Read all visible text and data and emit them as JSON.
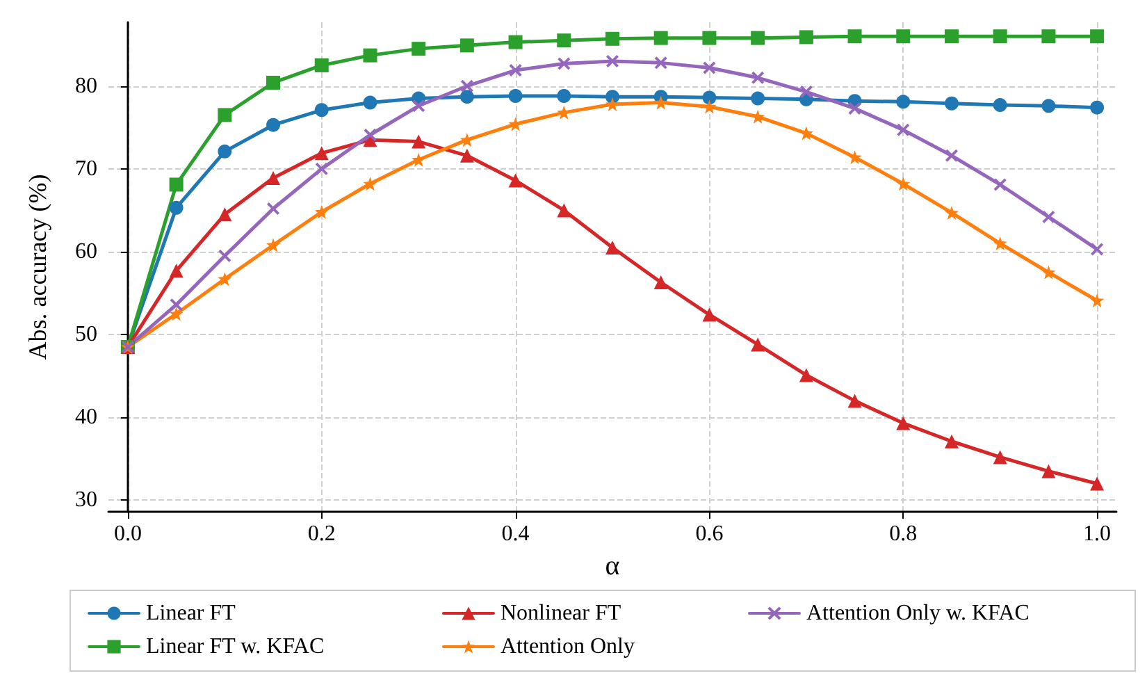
{
  "chart_data": {
    "type": "line",
    "xlabel": "α",
    "ylabel": "Abs. accuracy (%)",
    "x": [
      0,
      0.05,
      0.1,
      0.15,
      0.2,
      0.25,
      0.3,
      0.35,
      0.4,
      0.45,
      0.5,
      0.55,
      0.6,
      0.65,
      0.7,
      0.75,
      0.8,
      0.85,
      0.9,
      0.95,
      1.0
    ],
    "xlim": [
      -0.02,
      1.02
    ],
    "xticks": [
      {
        "value": 0,
        "label": "0.0"
      },
      0.2,
      0.4,
      0.6,
      0.8,
      {
        "value": 1,
        "label": "1.0"
      }
    ],
    "ylim": [
      28.6,
      87.7
    ],
    "yticks": [
      30,
      40,
      50,
      60,
      70,
      80
    ],
    "grid": true,
    "legend": "bottom",
    "line_style": "solid",
    "series": [
      {
        "name": "Linear FT",
        "color": "#1f77b4",
        "marker": "circle",
        "values": [
          48.5,
          65.3,
          72.1,
          75.3,
          77.1,
          78.0,
          78.5,
          78.7,
          78.8,
          78.8,
          78.7,
          78.7,
          78.6,
          78.5,
          78.4,
          78.2,
          78.1,
          77.9,
          77.7,
          77.6,
          77.4
        ]
      },
      {
        "name": "Linear FT w. KFAC",
        "color": "#2ca02c",
        "marker": "square",
        "values": [
          48.5,
          68.1,
          76.5,
          80.4,
          82.5,
          83.7,
          84.5,
          84.9,
          85.3,
          85.5,
          85.7,
          85.8,
          85.8,
          85.8,
          85.9,
          86.0,
          86.0,
          86.0,
          86.0,
          86.0,
          86.0
        ]
      },
      {
        "name": "Nonlinear FT",
        "color": "#d62728",
        "marker": "triangle",
        "values": [
          48.5,
          57.7,
          64.5,
          68.9,
          71.9,
          73.5,
          73.3,
          71.6,
          68.6,
          65.0,
          60.5,
          56.3,
          52.4,
          48.8,
          45.1,
          42.0,
          39.3,
          37.1,
          35.2,
          33.5,
          32.0
        ]
      },
      {
        "name": "Attention Only",
        "color": "#ff7f0e",
        "marker": "star",
        "values": [
          48.5,
          52.5,
          56.7,
          60.8,
          64.8,
          68.2,
          71.1,
          73.5,
          75.4,
          76.8,
          77.8,
          78.0,
          77.5,
          76.3,
          74.3,
          71.4,
          68.2,
          64.7,
          61.0,
          57.5,
          54.1
        ]
      },
      {
        "name": "Attention Only w. KFAC",
        "color": "#9467bd",
        "marker": "cross",
        "values": [
          48.5,
          53.6,
          59.5,
          65.2,
          70.0,
          74.1,
          77.6,
          80.0,
          81.9,
          82.7,
          83.0,
          82.8,
          82.2,
          81.0,
          79.3,
          77.3,
          74.7,
          71.6,
          68.1,
          64.2,
          60.3
        ]
      }
    ]
  }
}
